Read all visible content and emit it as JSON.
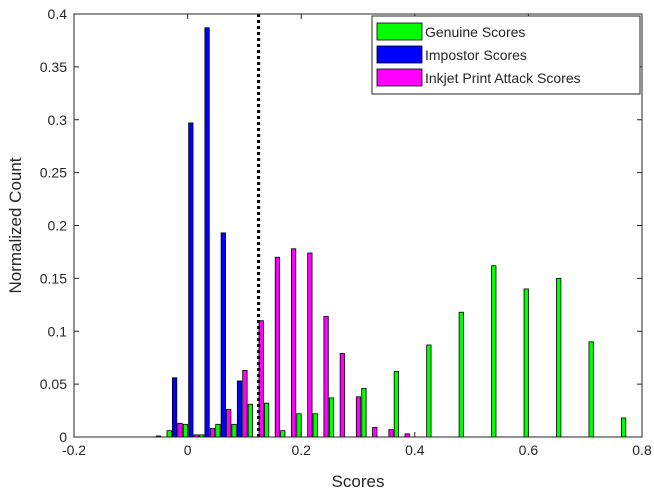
{
  "chart_data": {
    "type": "bar",
    "title": "",
    "xlabel": "Scores",
    "ylabel": "Normalized Count",
    "xlim": [
      -0.2,
      0.8
    ],
    "ylim": [
      0,
      0.4
    ],
    "xticks": [
      "-0.2",
      "0",
      "0.2",
      "0.4",
      "0.6",
      "0.8"
    ],
    "yticks": [
      "0",
      "0.05",
      "0.1",
      "0.15",
      "0.2",
      "0.25",
      "0.3",
      "0.35",
      "0.4"
    ],
    "grid": false,
    "legend_position": "top-right",
    "bin_width": 0.0286,
    "threshold": {
      "x": 0.125,
      "style": "dotted"
    },
    "series": [
      {
        "name": "Genuine Scores",
        "color": "#00ff00",
        "x": [
          -0.0229,
          0.0057,
          0.0343,
          0.0629,
          0.0914,
          0.12,
          0.1486,
          0.1771,
          0.2057,
          0.2343,
          0.2629,
          0.2914,
          0.32,
          0.3486,
          0.3771,
          0.4057,
          0.4343,
          0.4629,
          0.4914,
          0.52,
          0.5486,
          0.5771,
          0.6057,
          0.6343,
          0.6629,
          0.6914,
          0.72,
          0.7486,
          0.7771
        ],
        "values": [
          0.006,
          0.012,
          0.002,
          0.012,
          0.012,
          0.031,
          0.032,
          0.006,
          0.022,
          0.022,
          0.037,
          0.0,
          0.046,
          0.0,
          0.062,
          0.0,
          0.087,
          0.0,
          0.118,
          0.0,
          0.162,
          0.0,
          0.14,
          0.0,
          0.15,
          0.0,
          0.09,
          0.0,
          0.018
        ]
      },
      {
        "name": "Impostor Scores",
        "color": "#0000ff",
        "x": [
          -0.0514,
          -0.0229,
          0.0057,
          0.0343,
          0.0629,
          0.0914,
          0.12
        ],
        "values": [
          0.001,
          0.056,
          0.297,
          0.387,
          0.193,
          0.053,
          0.0
        ]
      },
      {
        "name": "Inkjet Print Attack Scores",
        "color": "#ff00ff",
        "x": [
          -0.0229,
          0.0057,
          0.0343,
          0.0629,
          0.0914,
          0.12,
          0.1486,
          0.1771,
          0.2057,
          0.2343,
          0.2629,
          0.2914,
          0.32,
          0.3486,
          0.3771,
          0.4057
        ],
        "values": [
          0.013,
          0.002,
          0.008,
          0.026,
          0.063,
          0.11,
          0.17,
          0.178,
          0.174,
          0.114,
          0.079,
          0.038,
          0.009,
          0.007,
          0.003,
          0.0
        ]
      }
    ]
  }
}
